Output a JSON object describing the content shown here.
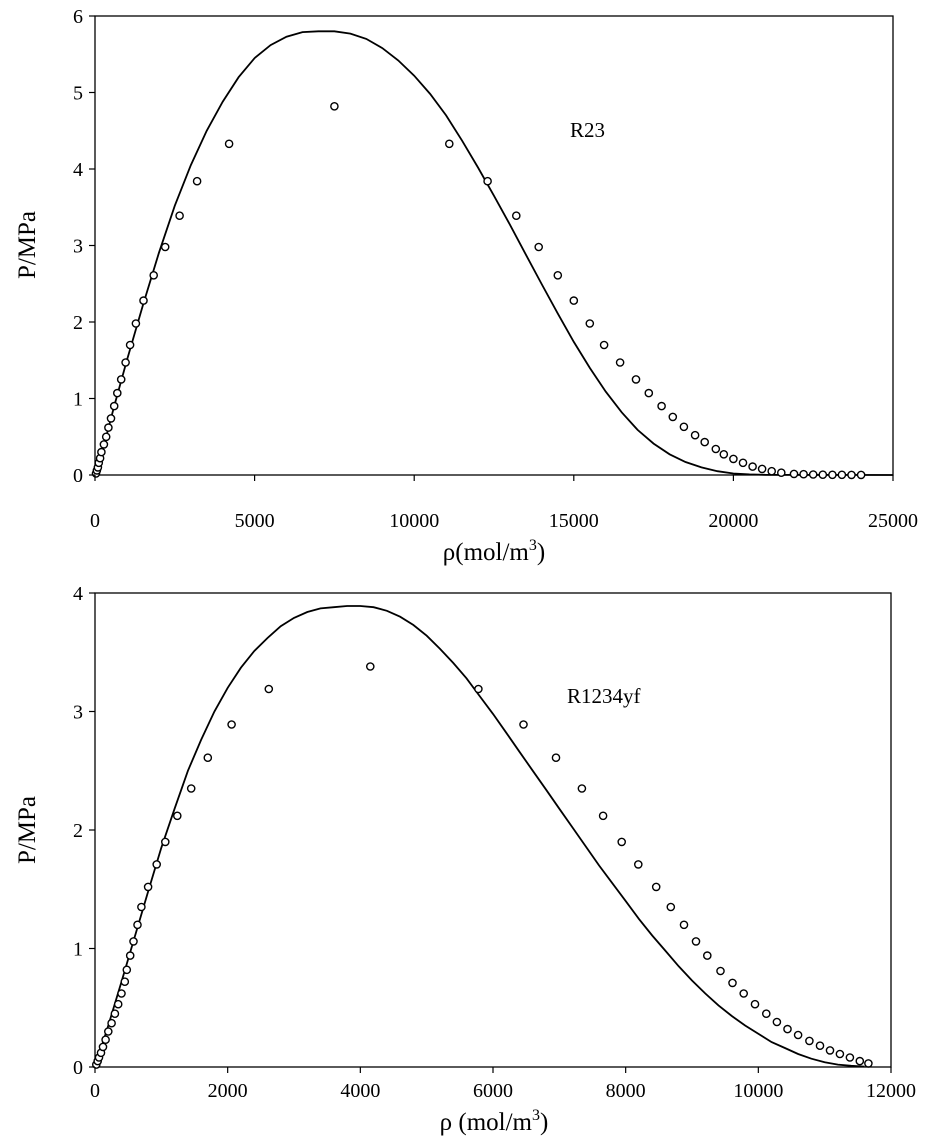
{
  "chart_data": [
    {
      "type": "scatter",
      "annotation": "R23",
      "xlabel": "ρ(mol/m",
      "xlabel_sup": "3",
      "xlabel_close": ")",
      "ylabel": "P/MPa",
      "xlim": [
        0,
        25000
      ],
      "ylim": [
        0,
        6
      ],
      "x_ticks": [
        "0",
        "5000",
        "10000",
        "15000",
        "20000",
        "25000"
      ],
      "y_ticks": [
        "0",
        "1",
        "2",
        "3",
        "4",
        "5",
        "6"
      ],
      "grid": false,
      "legend": "none",
      "series": [
        {
          "style": "line",
          "points": [
            [
              0,
              0
            ],
            [
              300,
              0.42
            ],
            [
              600,
              0.9
            ],
            [
              1000,
              1.5
            ],
            [
              1500,
              2.22
            ],
            [
              2000,
              2.9
            ],
            [
              2500,
              3.52
            ],
            [
              3000,
              4.05
            ],
            [
              3500,
              4.5
            ],
            [
              4000,
              4.88
            ],
            [
              4500,
              5.2
            ],
            [
              5000,
              5.45
            ],
            [
              5500,
              5.62
            ],
            [
              6000,
              5.73
            ],
            [
              6500,
              5.79
            ],
            [
              7000,
              5.8
            ],
            [
              7500,
              5.8
            ],
            [
              8000,
              5.77
            ],
            [
              8500,
              5.7
            ],
            [
              9000,
              5.58
            ],
            [
              9500,
              5.42
            ],
            [
              10000,
              5.22
            ],
            [
              10500,
              4.98
            ],
            [
              11000,
              4.7
            ],
            [
              11500,
              4.37
            ],
            [
              12000,
              4.02
            ],
            [
              12500,
              3.65
            ],
            [
              13000,
              3.27
            ],
            [
              13500,
              2.88
            ],
            [
              14000,
              2.49
            ],
            [
              14500,
              2.11
            ],
            [
              15000,
              1.74
            ],
            [
              15500,
              1.4
            ],
            [
              16000,
              1.09
            ],
            [
              16500,
              0.82
            ],
            [
              17000,
              0.59
            ],
            [
              17500,
              0.41
            ],
            [
              18000,
              0.27
            ],
            [
              18500,
              0.17
            ],
            [
              19000,
              0.1
            ],
            [
              19500,
              0.05
            ],
            [
              20000,
              0.02
            ],
            [
              20500,
              0.008
            ],
            [
              21000,
              0.002
            ],
            [
              25000,
              0
            ]
          ]
        },
        {
          "style": "marker",
          "points": [
            [
              30,
              0.02
            ],
            [
              60,
              0.06
            ],
            [
              90,
              0.1
            ],
            [
              120,
              0.16
            ],
            [
              160,
              0.22
            ],
            [
              200,
              0.3
            ],
            [
              280,
              0.4
            ],
            [
              350,
              0.5
            ],
            [
              420,
              0.62
            ],
            [
              500,
              0.74
            ],
            [
              600,
              0.9
            ],
            [
              700,
              1.07
            ],
            [
              820,
              1.25
            ],
            [
              960,
              1.47
            ],
            [
              1100,
              1.7
            ],
            [
              1280,
              1.98
            ],
            [
              1520,
              2.28
            ],
            [
              1840,
              2.61
            ],
            [
              2200,
              2.98
            ],
            [
              2650,
              3.39
            ],
            [
              3200,
              3.84
            ],
            [
              4200,
              4.33
            ],
            [
              7500,
              4.82
            ],
            [
              11100,
              4.33
            ],
            [
              12300,
              3.84
            ],
            [
              13200,
              3.39
            ],
            [
              13900,
              2.98
            ],
            [
              14500,
              2.61
            ],
            [
              15000,
              2.28
            ],
            [
              15500,
              1.98
            ],
            [
              15950,
              1.7
            ],
            [
              16450,
              1.47
            ],
            [
              16950,
              1.25
            ],
            [
              17350,
              1.07
            ],
            [
              17750,
              0.9
            ],
            [
              18100,
              0.76
            ],
            [
              18450,
              0.63
            ],
            [
              18800,
              0.52
            ],
            [
              19100,
              0.43
            ],
            [
              19450,
              0.34
            ],
            [
              19700,
              0.27
            ],
            [
              20000,
              0.21
            ],
            [
              20300,
              0.16
            ],
            [
              20600,
              0.11
            ],
            [
              20900,
              0.08
            ],
            [
              21200,
              0.05
            ],
            [
              21500,
              0.03
            ],
            [
              21900,
              0.015
            ],
            [
              22200,
              0.01
            ],
            [
              22500,
              0.006
            ],
            [
              22800,
              0.004
            ],
            [
              23100,
              0.003
            ],
            [
              23400,
              0.002
            ],
            [
              23700,
              0.001
            ],
            [
              24000,
              0.001
            ]
          ]
        }
      ]
    },
    {
      "type": "scatter",
      "annotation": "R1234yf",
      "xlabel": "ρ (mol/m",
      "xlabel_sup": "3",
      "xlabel_close": ")",
      "ylabel": "P/MPa",
      "xlim": [
        0,
        12000
      ],
      "ylim": [
        0,
        4
      ],
      "x_ticks": [
        "0",
        "2000",
        "4000",
        "6000",
        "8000",
        "10000",
        "12000"
      ],
      "y_ticks": [
        "0",
        "1",
        "2",
        "3",
        "4"
      ],
      "grid": false,
      "legend": "none",
      "series": [
        {
          "style": "line",
          "points": [
            [
              0,
              0
            ],
            [
              200,
              0.35
            ],
            [
              400,
              0.72
            ],
            [
              600,
              1.1
            ],
            [
              800,
              1.48
            ],
            [
              1000,
              1.85
            ],
            [
              1200,
              2.18
            ],
            [
              1400,
              2.5
            ],
            [
              1600,
              2.76
            ],
            [
              1800,
              3.0
            ],
            [
              2000,
              3.2
            ],
            [
              2200,
              3.37
            ],
            [
              2400,
              3.51
            ],
            [
              2600,
              3.62
            ],
            [
              2800,
              3.72
            ],
            [
              3000,
              3.79
            ],
            [
              3200,
              3.84
            ],
            [
              3400,
              3.87
            ],
            [
              3600,
              3.88
            ],
            [
              3800,
              3.89
            ],
            [
              4000,
              3.89
            ],
            [
              4200,
              3.88
            ],
            [
              4400,
              3.85
            ],
            [
              4600,
              3.8
            ],
            [
              4800,
              3.73
            ],
            [
              5000,
              3.64
            ],
            [
              5200,
              3.53
            ],
            [
              5400,
              3.41
            ],
            [
              5600,
              3.28
            ],
            [
              5800,
              3.13
            ],
            [
              6000,
              2.98
            ],
            [
              6200,
              2.82
            ],
            [
              6400,
              2.66
            ],
            [
              6600,
              2.5
            ],
            [
              6800,
              2.34
            ],
            [
              7000,
              2.18
            ],
            [
              7200,
              2.02
            ],
            [
              7400,
              1.86
            ],
            [
              7600,
              1.7
            ],
            [
              7800,
              1.55
            ],
            [
              8000,
              1.4
            ],
            [
              8200,
              1.25
            ],
            [
              8400,
              1.11
            ],
            [
              8600,
              0.98
            ],
            [
              8800,
              0.85
            ],
            [
              9000,
              0.73
            ],
            [
              9200,
              0.62
            ],
            [
              9400,
              0.52
            ],
            [
              9600,
              0.43
            ],
            [
              9800,
              0.35
            ],
            [
              10000,
              0.28
            ],
            [
              10200,
              0.21
            ],
            [
              10400,
              0.16
            ],
            [
              10600,
              0.11
            ],
            [
              10800,
              0.07
            ],
            [
              11000,
              0.04
            ],
            [
              11200,
              0.02
            ],
            [
              11400,
              0.01
            ],
            [
              11600,
              0.003
            ]
          ]
        },
        {
          "style": "marker",
          "points": [
            [
              20,
              0.02
            ],
            [
              40,
              0.05
            ],
            [
              60,
              0.08
            ],
            [
              90,
              0.12
            ],
            [
              120,
              0.17
            ],
            [
              160,
              0.23
            ],
            [
              200,
              0.3
            ],
            [
              250,
              0.37
            ],
            [
              300,
              0.45
            ],
            [
              350,
              0.53
            ],
            [
              400,
              0.62
            ],
            [
              450,
              0.72
            ],
            [
              480,
              0.82
            ],
            [
              530,
              0.94
            ],
            [
              580,
              1.06
            ],
            [
              640,
              1.2
            ],
            [
              700,
              1.35
            ],
            [
              800,
              1.52
            ],
            [
              930,
              1.71
            ],
            [
              1060,
              1.9
            ],
            [
              1240,
              2.12
            ],
            [
              1450,
              2.35
            ],
            [
              1700,
              2.61
            ],
            [
              2060,
              2.89
            ],
            [
              2620,
              3.19
            ],
            [
              4150,
              3.38
            ],
            [
              5780,
              3.19
            ],
            [
              6460,
              2.89
            ],
            [
              6950,
              2.61
            ],
            [
              7340,
              2.35
            ],
            [
              7660,
              2.12
            ],
            [
              7940,
              1.9
            ],
            [
              8190,
              1.71
            ],
            [
              8460,
              1.52
            ],
            [
              8680,
              1.35
            ],
            [
              8880,
              1.2
            ],
            [
              9060,
              1.06
            ],
            [
              9230,
              0.94
            ],
            [
              9430,
              0.81
            ],
            [
              9610,
              0.71
            ],
            [
              9780,
              0.62
            ],
            [
              9950,
              0.53
            ],
            [
              10120,
              0.45
            ],
            [
              10280,
              0.38
            ],
            [
              10440,
              0.32
            ],
            [
              10600,
              0.27
            ],
            [
              10770,
              0.22
            ],
            [
              10930,
              0.18
            ],
            [
              11080,
              0.14
            ],
            [
              11230,
              0.11
            ],
            [
              11380,
              0.08
            ],
            [
              11530,
              0.05
            ],
            [
              11660,
              0.03
            ]
          ]
        }
      ]
    }
  ]
}
